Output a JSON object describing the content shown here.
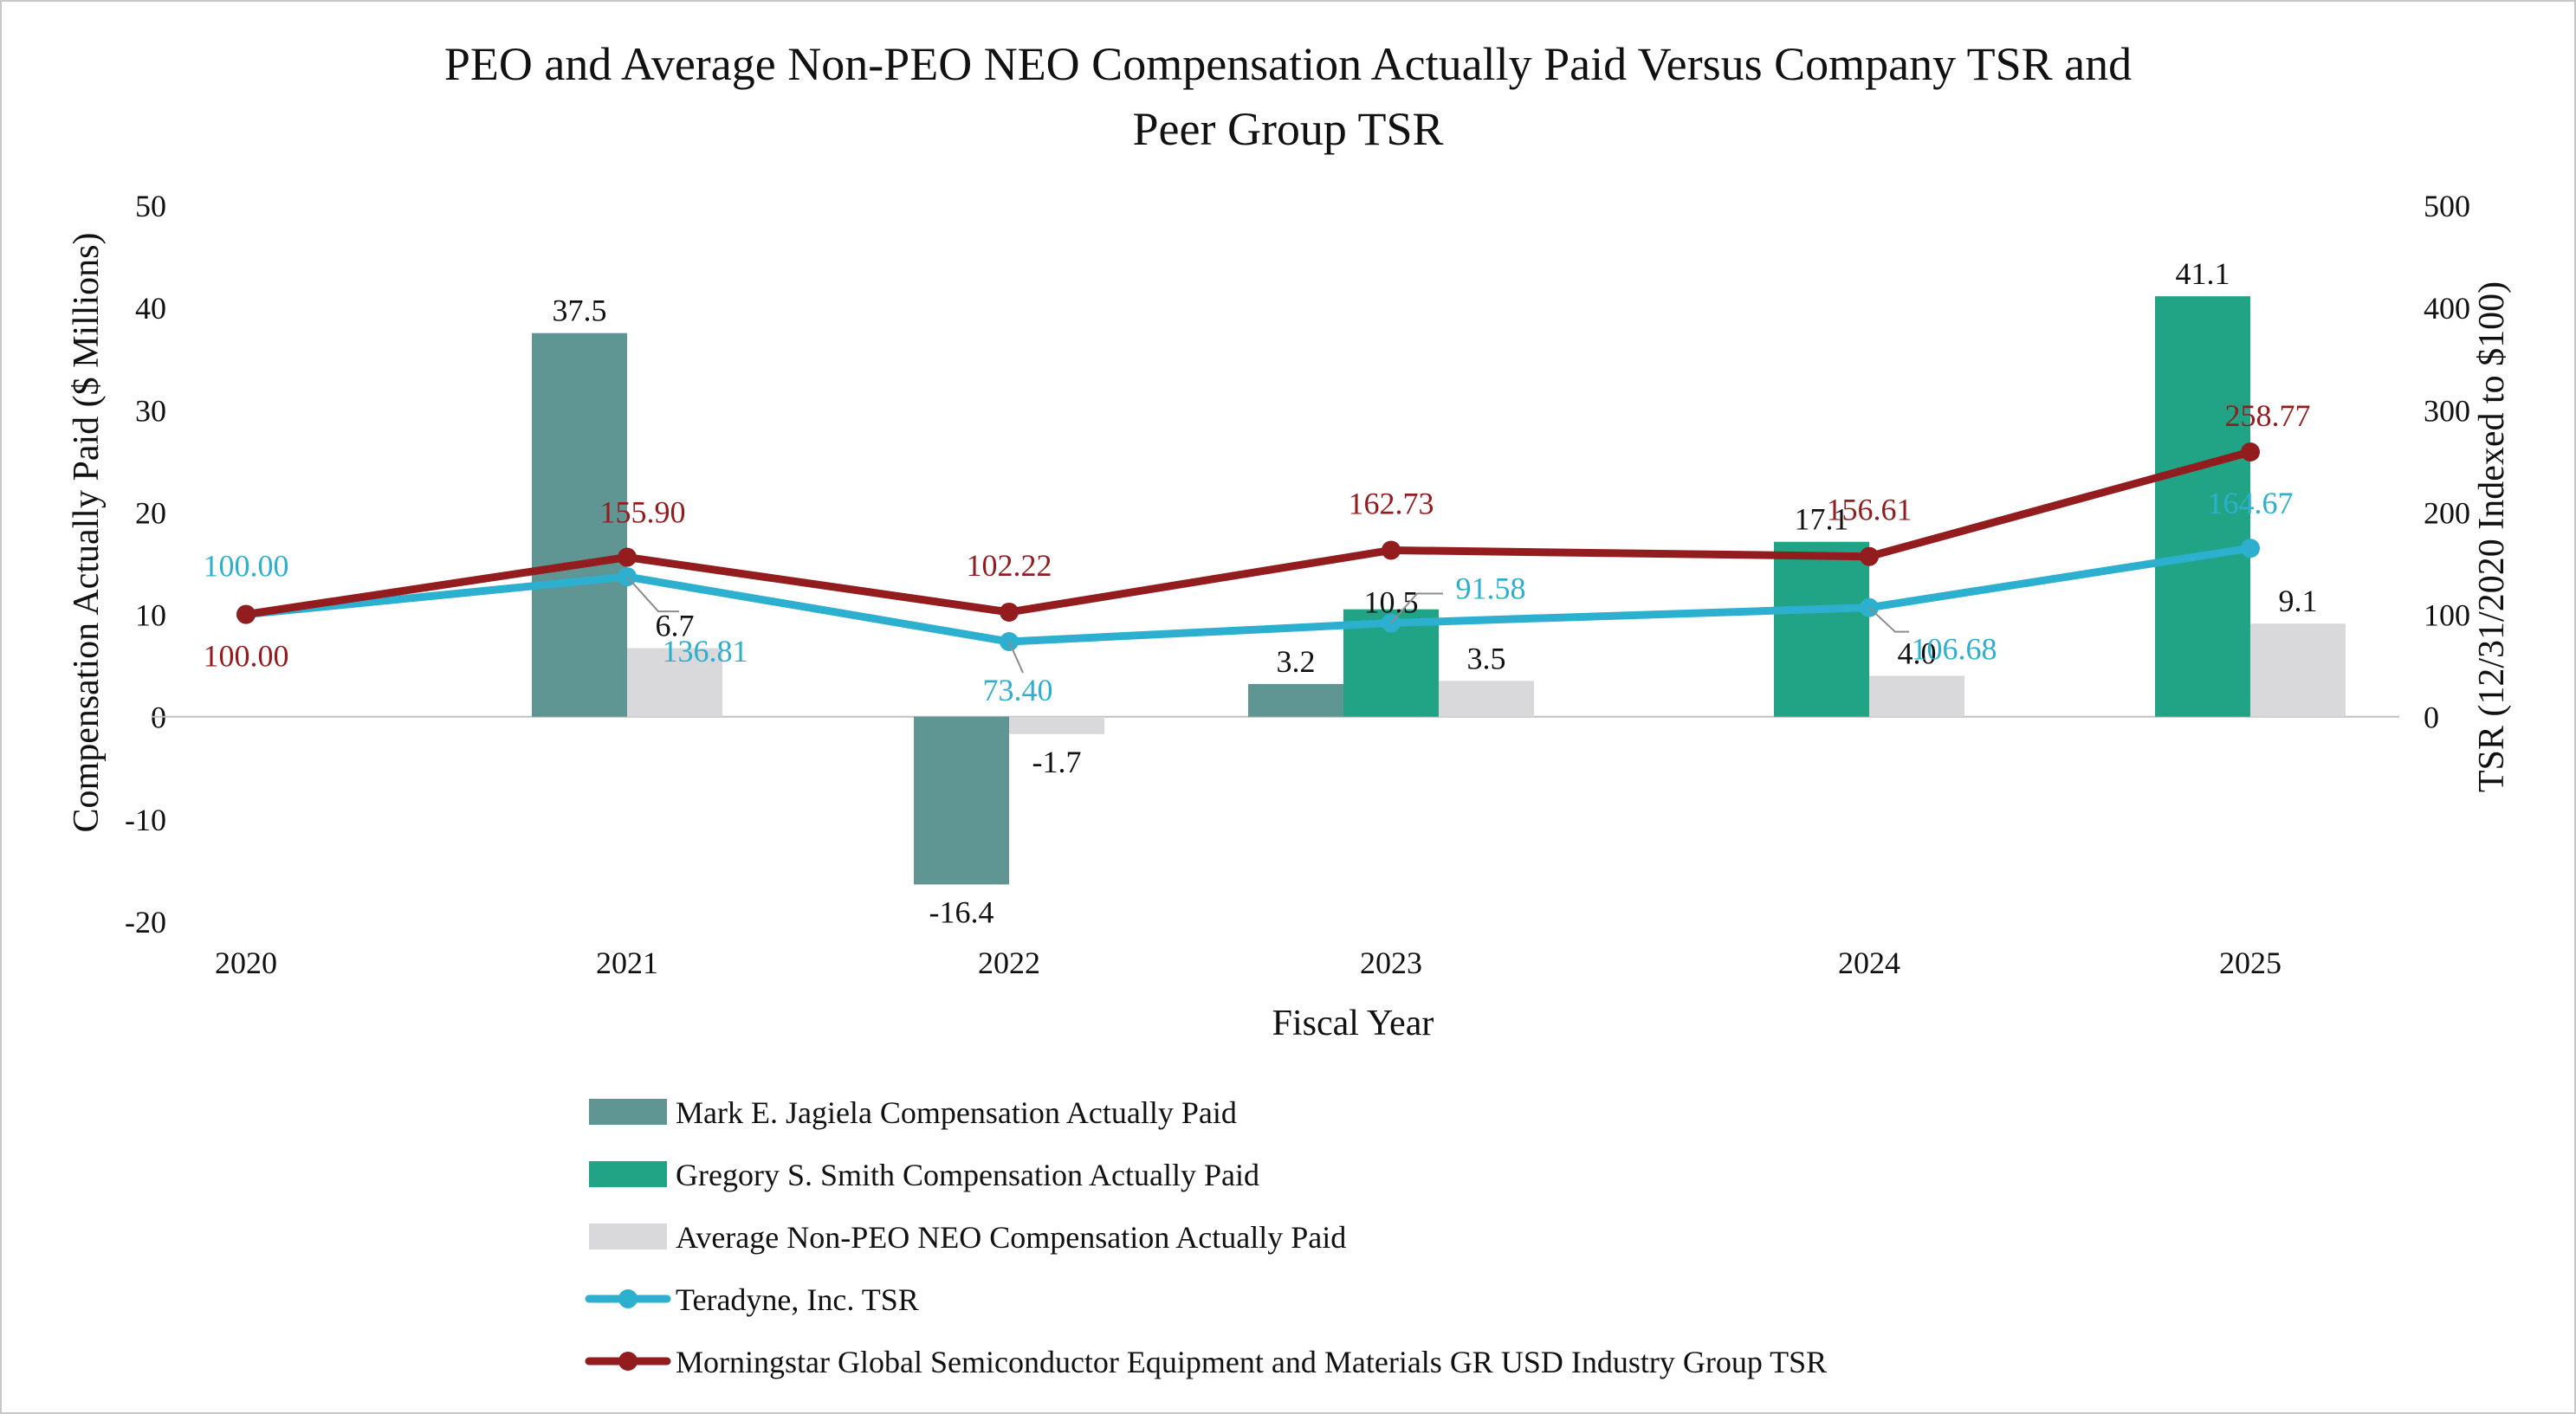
{
  "chart_data": {
    "type": "bar",
    "title": "PEO and Average Non-PEO NEO Compensation Actually Paid Versus Company TSR and Peer Group TSR",
    "title_lines": [
      "PEO and Average Non-PEO NEO Compensation Actually Paid Versus Company TSR and",
      "Peer Group TSR"
    ],
    "xlabel": "Fiscal Year",
    "ylabel": "Compensation Actually Paid ($ Millions)",
    "y2label": "TSR (12/31/2020 Indexed to $100)",
    "categories": [
      "2020",
      "2021",
      "2022",
      "2023",
      "2024",
      "2025"
    ],
    "ylim": [
      -20,
      50
    ],
    "yticks": [
      -20,
      -10,
      0,
      10,
      20,
      30,
      40,
      50
    ],
    "y2lim": [
      -200,
      500
    ],
    "y2ticks": [
      0,
      100,
      200,
      300,
      400,
      500
    ],
    "grid": false,
    "legend_position": "bottom",
    "bar_series": [
      {
        "name": "Mark E. Jagiela Compensation Actually Paid",
        "color": "#5f9593",
        "values": [
          null,
          37.5,
          -16.4,
          3.2,
          null,
          null
        ],
        "labels": [
          "",
          "37.5",
          "-16.4",
          "3.2",
          "",
          ""
        ]
      },
      {
        "name": "Gregory S. Smith Compensation Actually Paid",
        "color": "#21a385",
        "values": [
          null,
          null,
          null,
          10.5,
          17.1,
          41.1
        ],
        "labels": [
          "",
          "",
          "",
          "10.5",
          "17.1",
          "41.1"
        ]
      },
      {
        "name": "Average Non-PEO NEO Compensation Actually Paid",
        "color": "#d9d9db",
        "values": [
          null,
          6.7,
          -1.7,
          3.5,
          4.0,
          9.1
        ],
        "labels": [
          "",
          "6.7",
          "-1.7",
          "3.5",
          "4.0",
          "9.1"
        ]
      }
    ],
    "line_series": [
      {
        "name": "Teradyne, Inc. TSR",
        "color": "#2db0cf",
        "axis": "right",
        "values": [
          100.0,
          136.81,
          73.4,
          91.58,
          106.68,
          164.67
        ],
        "labels": [
          "100.00",
          "136.81",
          "73.40",
          "91.58",
          "106.68",
          "164.67"
        ]
      },
      {
        "name": "Morningstar Global Semiconductor Equipment and Materials GR USD Industry Group TSR",
        "color": "#931c1e",
        "axis": "right",
        "values": [
          100.0,
          155.9,
          102.22,
          162.73,
          156.61,
          258.77
        ],
        "labels": [
          "100.00",
          "155.90",
          "102.22",
          "162.73",
          "156.61",
          "258.77"
        ]
      }
    ]
  }
}
